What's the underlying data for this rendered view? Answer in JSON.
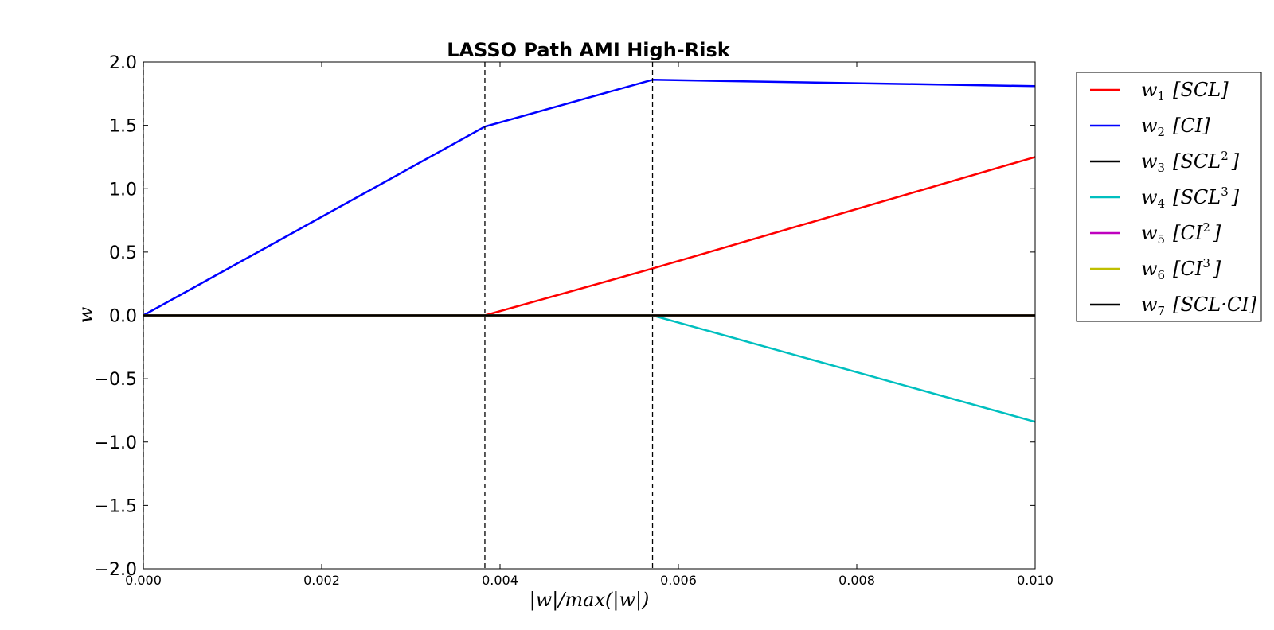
{
  "chart_data": {
    "type": "line",
    "title": "LASSO Path AMI High-Risk",
    "xlabel": "|w|/max(|w|)",
    "ylabel": "w",
    "xlim": [
      0.0,
      0.01
    ],
    "ylim": [
      -2.0,
      2.0
    ],
    "x_ticks": [
      "0.000",
      "0.002",
      "0.004",
      "0.006",
      "0.008",
      "0.010"
    ],
    "x_tick_values": [
      0.0,
      0.002,
      0.004,
      0.006,
      0.008,
      0.01
    ],
    "y_ticks": [
      "2.0",
      "1.5",
      "1.0",
      "0.5",
      "0.0",
      "−0.5",
      "−1.0",
      "−1.5",
      "−2.0"
    ],
    "y_tick_values": [
      2.0,
      1.5,
      1.0,
      0.5,
      0.0,
      -0.5,
      -1.0,
      -1.5,
      -2.0
    ],
    "vlines": [
      0.0,
      0.00383,
      0.00571
    ],
    "grid": false,
    "legend_position": "outside-right",
    "series": [
      {
        "name": "w1 [SCL]",
        "sub": "1",
        "label": "[SCL]",
        "sup": "",
        "color": "#ff0000",
        "x": [
          0.0,
          0.00383,
          0.00571,
          0.01
        ],
        "y": [
          0.0,
          0.0,
          0.37,
          1.25
        ]
      },
      {
        "name": "w2 [CI]",
        "sub": "2",
        "label": "[CI]",
        "sup": "",
        "color": "#0000ff",
        "x": [
          0.0,
          0.00383,
          0.00571,
          0.01
        ],
        "y": [
          0.0,
          1.49,
          1.86,
          1.81
        ]
      },
      {
        "name": "w3 [SCL2]",
        "sub": "3",
        "label": "[SCL",
        "sup": "2",
        "color": "#000000",
        "x": [
          0.0,
          0.01
        ],
        "y": [
          0.0,
          0.0
        ]
      },
      {
        "name": "w4 [SCL3]",
        "sub": "4",
        "label": "[SCL",
        "sup": "3",
        "color": "#00bfbf",
        "x": [
          0.0,
          0.00571,
          0.01
        ],
        "y": [
          0.0,
          0.0,
          -0.84
        ]
      },
      {
        "name": "w5 [CI2]",
        "sub": "5",
        "label": "[CI",
        "sup": "2",
        "color": "#bf00bf",
        "x": [
          0.0,
          0.01
        ],
        "y": [
          0.0,
          0.0
        ]
      },
      {
        "name": "w6 [CI3]",
        "sub": "6",
        "label": "[CI",
        "sup": "3",
        "color": "#bfbf00",
        "x": [
          0.0,
          0.01
        ],
        "y": [
          0.0,
          0.0
        ]
      },
      {
        "name": "w7 [SCL·CI]",
        "sub": "7",
        "label": "[SCL·CI]",
        "sup": "",
        "color": "#000000",
        "x": [
          0.0,
          0.01
        ],
        "y": [
          0.0,
          0.0
        ]
      }
    ]
  }
}
